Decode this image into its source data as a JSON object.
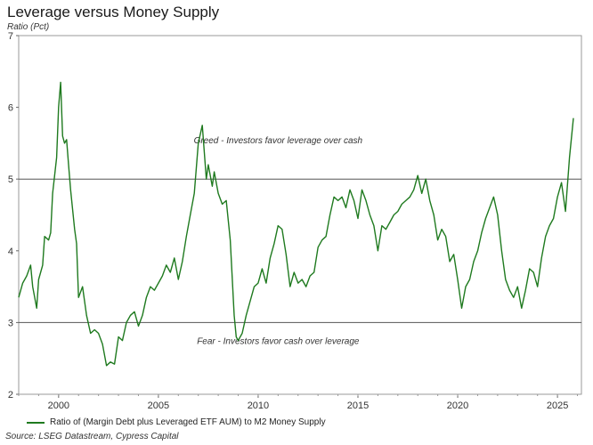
{
  "chart_data": {
    "type": "line",
    "title": "Leverage versus Money Supply",
    "ylabel": "Ratio (Pct)",
    "xlabel": "",
    "ylim": [
      2,
      7
    ],
    "xlim": [
      1998.0,
      2026.2
    ],
    "yticks": [
      "2",
      "3",
      "4",
      "5",
      "6",
      "7"
    ],
    "xticks": [
      {
        "label": "2000",
        "value": 2000
      },
      {
        "label": "2005",
        "value": 2005
      },
      {
        "label": "2010",
        "value": 2010
      },
      {
        "label": "2015",
        "value": 2015
      },
      {
        "label": "2020",
        "value": 2020
      },
      {
        "label": "2025",
        "value": 2025
      }
    ],
    "reference_lines": [
      {
        "y": 5,
        "label": "Greed - Investors favor leverage over cash",
        "label_x": 2011.0
      },
      {
        "y": 3,
        "label": "Fear - Investors favor cash over leverage",
        "label_x": 2011.0
      }
    ],
    "series": [
      {
        "name": "Ratio of (Margin Debt plus Leveraged ETF AUM) to M2 Money Supply",
        "color": "#1f7a1f",
        "x": [
          1998.0,
          1998.2,
          1998.4,
          1998.6,
          1998.7,
          1998.9,
          1999.0,
          1999.2,
          1999.3,
          1999.5,
          1999.6,
          1999.7,
          1999.9,
          2000.0,
          2000.1,
          2000.2,
          2000.3,
          2000.4,
          2000.5,
          2000.6,
          2000.8,
          2000.9,
          2001.0,
          2001.2,
          2001.4,
          2001.6,
          2001.8,
          2002.0,
          2002.2,
          2002.4,
          2002.6,
          2002.8,
          2003.0,
          2003.2,
          2003.4,
          2003.6,
          2003.8,
          2004.0,
          2004.2,
          2004.4,
          2004.6,
          2004.8,
          2005.0,
          2005.2,
          2005.4,
          2005.6,
          2005.8,
          2006.0,
          2006.2,
          2006.4,
          2006.6,
          2006.8,
          2007.0,
          2007.2,
          2007.4,
          2007.5,
          2007.7,
          2007.8,
          2008.0,
          2008.2,
          2008.4,
          2008.6,
          2008.8,
          2008.9,
          2009.0,
          2009.2,
          2009.4,
          2009.6,
          2009.8,
          2010.0,
          2010.2,
          2010.4,
          2010.6,
          2010.8,
          2011.0,
          2011.2,
          2011.4,
          2011.6,
          2011.8,
          2012.0,
          2012.2,
          2012.4,
          2012.6,
          2012.8,
          2013.0,
          2013.2,
          2013.4,
          2013.6,
          2013.8,
          2014.0,
          2014.2,
          2014.4,
          2014.6,
          2014.8,
          2015.0,
          2015.2,
          2015.4,
          2015.6,
          2015.8,
          2016.0,
          2016.2,
          2016.4,
          2016.6,
          2016.8,
          2017.0,
          2017.2,
          2017.4,
          2017.6,
          2017.8,
          2018.0,
          2018.2,
          2018.4,
          2018.6,
          2018.8,
          2019.0,
          2019.2,
          2019.4,
          2019.6,
          2019.8,
          2020.0,
          2020.2,
          2020.4,
          2020.6,
          2020.8,
          2021.0,
          2021.2,
          2021.4,
          2021.6,
          2021.8,
          2022.0,
          2022.2,
          2022.4,
          2022.6,
          2022.8,
          2023.0,
          2023.2,
          2023.4,
          2023.6,
          2023.8,
          2024.0,
          2024.2,
          2024.4,
          2024.6,
          2024.8,
          2025.0,
          2025.2,
          2025.4,
          2025.6,
          2025.8
        ],
        "values": [
          3.35,
          3.55,
          3.65,
          3.8,
          3.5,
          3.2,
          3.6,
          3.8,
          4.2,
          4.15,
          4.25,
          4.8,
          5.3,
          6.0,
          6.35,
          5.6,
          5.5,
          5.55,
          5.2,
          4.85,
          4.3,
          4.1,
          3.35,
          3.5,
          3.1,
          2.85,
          2.9,
          2.85,
          2.7,
          2.4,
          2.45,
          2.42,
          2.8,
          2.75,
          3.0,
          3.1,
          3.15,
          2.95,
          3.1,
          3.35,
          3.5,
          3.45,
          3.55,
          3.65,
          3.8,
          3.7,
          3.9,
          3.6,
          3.85,
          4.2,
          4.5,
          4.8,
          5.5,
          5.75,
          5.0,
          5.2,
          4.9,
          5.1,
          4.8,
          4.65,
          4.7,
          4.15,
          3.1,
          2.8,
          2.75,
          2.85,
          3.1,
          3.3,
          3.5,
          3.55,
          3.75,
          3.55,
          3.9,
          4.1,
          4.35,
          4.3,
          3.95,
          3.5,
          3.7,
          3.55,
          3.6,
          3.5,
          3.65,
          3.7,
          4.05,
          4.15,
          4.2,
          4.5,
          4.75,
          4.7,
          4.75,
          4.6,
          4.85,
          4.7,
          4.45,
          4.85,
          4.7,
          4.5,
          4.35,
          4.0,
          4.35,
          4.3,
          4.4,
          4.5,
          4.55,
          4.65,
          4.7,
          4.75,
          4.85,
          5.05,
          4.8,
          5.0,
          4.7,
          4.5,
          4.15,
          4.3,
          4.2,
          3.85,
          3.95,
          3.6,
          3.2,
          3.5,
          3.6,
          3.85,
          4.0,
          4.25,
          4.45,
          4.6,
          4.75,
          4.5,
          4.0,
          3.6,
          3.45,
          3.35,
          3.5,
          3.2,
          3.45,
          3.75,
          3.7,
          3.5,
          3.9,
          4.2,
          4.35,
          4.45,
          4.75,
          4.95,
          4.55,
          5.3,
          5.85
        ]
      }
    ],
    "legend": "bottom-left"
  },
  "source": "Source: LSEG Datastream, Cypress Capital"
}
